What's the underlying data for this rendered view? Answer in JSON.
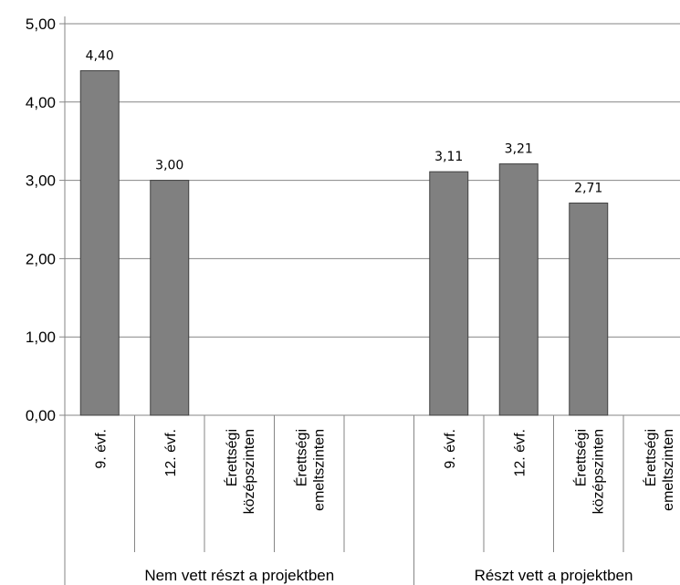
{
  "chart_data": {
    "type": "bar",
    "ylim": [
      0,
      5
    ],
    "y_ticks": [
      "0,00",
      "1,00",
      "2,00",
      "3,00",
      "4,00",
      "5,00"
    ],
    "grid": true,
    "groups": [
      {
        "label": "Nem vett  részt a projektben",
        "categories": [
          {
            "lines": [
              "9. évf."
            ],
            "value": 4.4,
            "label": "4,40"
          },
          {
            "lines": [
              "12. évf."
            ],
            "value": 3.0,
            "label": "3,00"
          },
          {
            "lines": [
              "Érettségi",
              "középszinten"
            ],
            "value": null,
            "label": ""
          },
          {
            "lines": [
              "Érettségi",
              "emeltszinten"
            ],
            "value": null,
            "label": ""
          },
          {
            "lines": [
              ""
            ],
            "value": null,
            "label": ""
          }
        ]
      },
      {
        "label": "Részt vett a projektben",
        "categories": [
          {
            "lines": [
              "9. évf."
            ],
            "value": 3.11,
            "label": "3,11"
          },
          {
            "lines": [
              "12. évf."
            ],
            "value": 3.21,
            "label": "3,21"
          },
          {
            "lines": [
              "Érettségi",
              "középszinten"
            ],
            "value": 2.71,
            "label": "2,71"
          },
          {
            "lines": [
              "Érettségi",
              "emeltszinten"
            ],
            "value": null,
            "label": ""
          }
        ]
      }
    ],
    "colors": {
      "bar": "#808080",
      "bar_stroke": "#404040",
      "grid": "#868686",
      "axis": "#868686"
    }
  }
}
